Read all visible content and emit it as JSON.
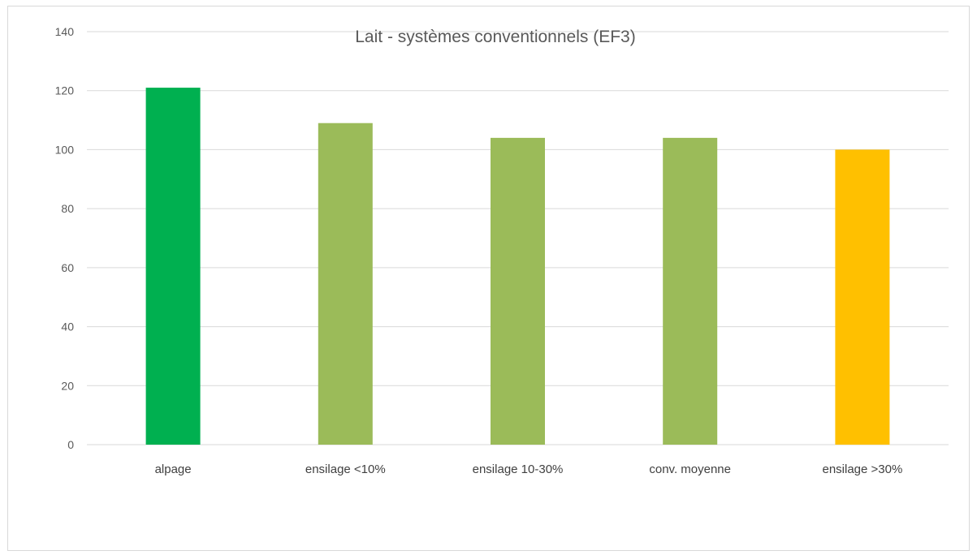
{
  "chart_data": {
    "type": "bar",
    "title": "Lait - systèmes conventionnels (EF3)",
    "xlabel": "",
    "ylabel": "",
    "categories": [
      "alpage",
      "ensilage <10%",
      "ensilage 10-30%",
      "conv. moyenne",
      "ensilage >30%"
    ],
    "values": [
      121,
      109,
      104,
      104,
      100
    ],
    "bar_colors": [
      "#00b050",
      "#9bbb59",
      "#9bbb59",
      "#9bbb59",
      "#ffc000"
    ],
    "ylim": [
      0,
      140
    ],
    "y_ticks": [
      0,
      20,
      40,
      60,
      80,
      100,
      120,
      140
    ],
    "grid": true,
    "legend": "none",
    "gridline_color": "#d9d9d9"
  }
}
